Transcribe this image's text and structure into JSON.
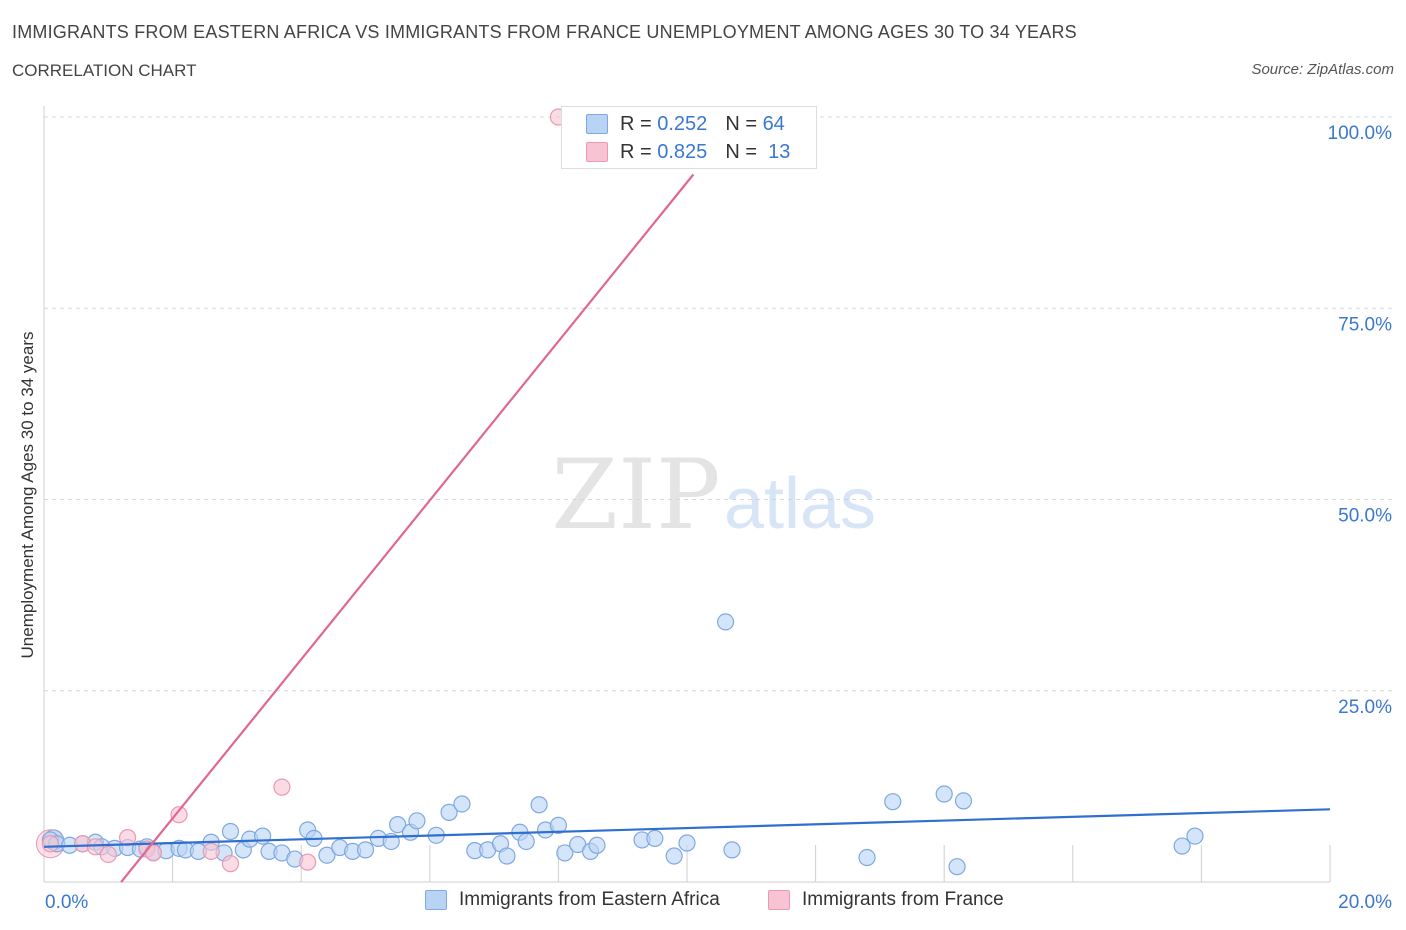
{
  "header": {
    "title": "IMMIGRANTS FROM EASTERN AFRICA VS IMMIGRANTS FROM FRANCE UNEMPLOYMENT AMONG AGES 30 TO 34 YEARS",
    "subtitle": "CORRELATION CHART",
    "source": "Source: ZipAtlas.com"
  },
  "watermark": {
    "zip": "ZIP",
    "atlas": "atlas"
  },
  "legend": {
    "blue": {
      "r_label": "R =",
      "r_value": "0.252",
      "n_label": "N =",
      "n_value": "64"
    },
    "pink": {
      "r_label": "R =",
      "r_value": "0.825",
      "n_label": "N =",
      "n_value": "13"
    }
  },
  "colors": {
    "blue_fill": "#b9d3f5",
    "blue_stroke": "#7fa8e0",
    "blue_line": "#2f6fcf",
    "pink_fill": "#f8c4d4",
    "pink_stroke": "#e89ab2",
    "pink_line": "#e06890",
    "tick_label": "#3a78d0",
    "grid": "#d8d8d8"
  },
  "chart_data": {
    "type": "scatter",
    "title": "IMMIGRANTS FROM EASTERN AFRICA VS IMMIGRANTS FROM FRANCE UNEMPLOYMENT AMONG AGES 30 TO 34 YEARS",
    "xlabel": "",
    "ylabel": "Unemployment Among Ages 30 to 34 years",
    "xlim": [
      0,
      20
    ],
    "ylim": [
      0,
      100
    ],
    "x_tick_labels": [
      "0.0%",
      "20.0%"
    ],
    "y_ticks": [
      25,
      50,
      75,
      100
    ],
    "y_tick_labels": [
      "25.0%",
      "50.0%",
      "75.0%",
      "100.0%"
    ],
    "grid": true,
    "series": [
      {
        "name": "Immigrants from Eastern Africa",
        "color": "blue",
        "points": [
          [
            0.1,
            5.5
          ],
          [
            0.2,
            5.0
          ],
          [
            0.4,
            4.8
          ],
          [
            0.6,
            5.0
          ],
          [
            0.8,
            5.2
          ],
          [
            0.9,
            4.6
          ],
          [
            1.1,
            4.4
          ],
          [
            1.3,
            4.5
          ],
          [
            1.5,
            4.3
          ],
          [
            1.6,
            4.6
          ],
          [
            1.7,
            3.9
          ],
          [
            1.9,
            4.1
          ],
          [
            2.1,
            4.4
          ],
          [
            2.2,
            4.2
          ],
          [
            2.4,
            4.0
          ],
          [
            2.6,
            5.2
          ],
          [
            2.8,
            3.8
          ],
          [
            2.9,
            6.6
          ],
          [
            3.1,
            4.2
          ],
          [
            3.2,
            5.6
          ],
          [
            3.4,
            6.0
          ],
          [
            3.5,
            4.0
          ],
          [
            3.7,
            3.8
          ],
          [
            3.9,
            3.0
          ],
          [
            4.1,
            6.8
          ],
          [
            4.2,
            5.7
          ],
          [
            4.4,
            3.5
          ],
          [
            4.6,
            4.5
          ],
          [
            4.8,
            4.0
          ],
          [
            5.0,
            4.2
          ],
          [
            5.2,
            5.7
          ],
          [
            5.4,
            5.3
          ],
          [
            5.5,
            7.5
          ],
          [
            5.7,
            6.5
          ],
          [
            5.8,
            8.0
          ],
          [
            6.1,
            6.1
          ],
          [
            6.3,
            9.1
          ],
          [
            6.5,
            10.2
          ],
          [
            6.7,
            4.1
          ],
          [
            6.9,
            4.2
          ],
          [
            7.1,
            5.0
          ],
          [
            7.2,
            3.4
          ],
          [
            7.4,
            6.5
          ],
          [
            7.5,
            5.3
          ],
          [
            7.7,
            10.1
          ],
          [
            7.8,
            6.8
          ],
          [
            8.0,
            7.4
          ],
          [
            8.1,
            3.8
          ],
          [
            8.3,
            4.9
          ],
          [
            8.5,
            4.0
          ],
          [
            8.6,
            4.8
          ],
          [
            9.3,
            5.5
          ],
          [
            9.5,
            5.7
          ],
          [
            9.8,
            3.4
          ],
          [
            10.0,
            5.1
          ],
          [
            10.6,
            34.0
          ],
          [
            10.7,
            4.2
          ],
          [
            12.8,
            3.2
          ],
          [
            13.2,
            10.5
          ],
          [
            14.0,
            11.5
          ],
          [
            14.2,
            2.0
          ],
          [
            14.3,
            10.6
          ],
          [
            17.7,
            4.7
          ],
          [
            17.9,
            6.0
          ]
        ],
        "trend": {
          "x": [
            0,
            20
          ],
          "y": [
            4.6,
            9.5
          ]
        }
      },
      {
        "name": "Immigrants from France",
        "color": "pink",
        "points": [
          [
            0.1,
            5.0
          ],
          [
            0.6,
            5.0
          ],
          [
            0.8,
            4.6
          ],
          [
            1.0,
            3.6
          ],
          [
            1.3,
            5.8
          ],
          [
            1.6,
            4.3
          ],
          [
            1.7,
            3.8
          ],
          [
            2.1,
            8.8
          ],
          [
            2.6,
            4.0
          ],
          [
            2.9,
            2.4
          ],
          [
            3.7,
            12.4
          ],
          [
            4.1,
            2.6
          ],
          [
            8.0,
            100.0
          ]
        ],
        "trend": {
          "x": [
            1.2,
            10.1
          ],
          "y": [
            0,
            92.5
          ]
        }
      }
    ]
  },
  "bottom_legend": {
    "blue_label": "Immigrants from Eastern Africa",
    "pink_label": "Immigrants from France"
  }
}
